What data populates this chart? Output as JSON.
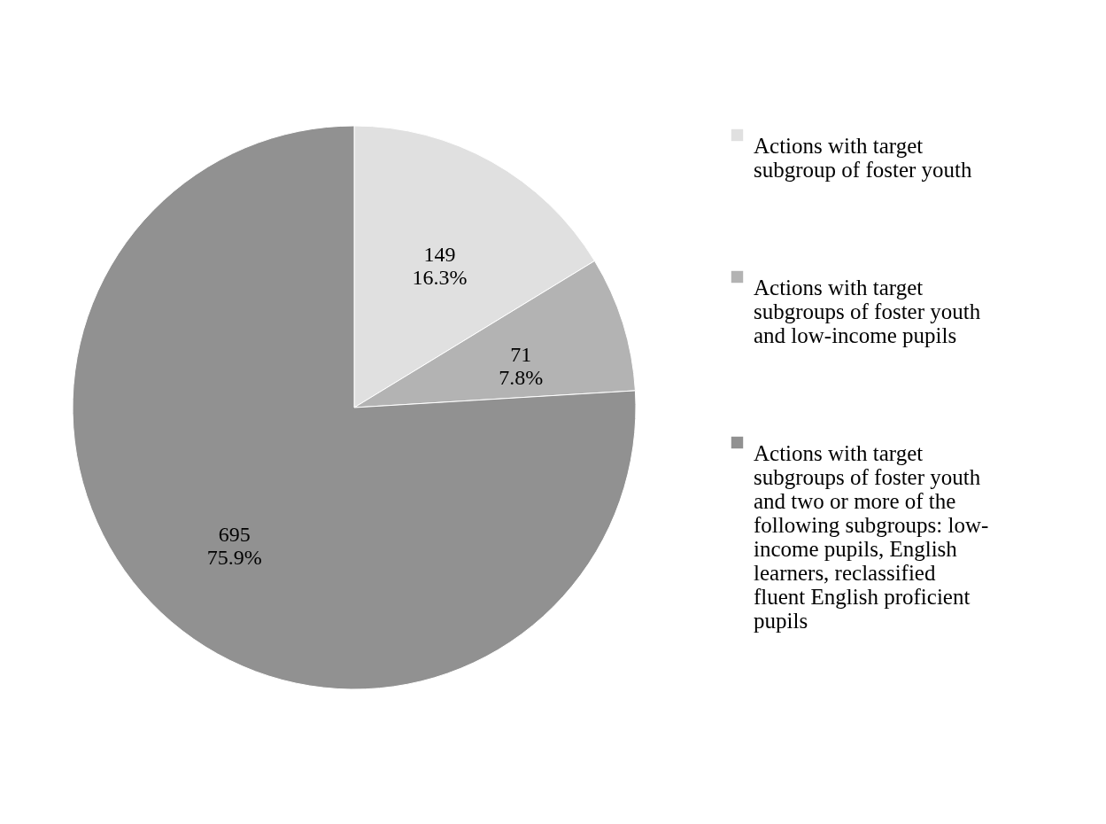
{
  "chart_data": {
    "type": "pie",
    "categories": [
      "Actions with target subgroup of foster youth",
      "Actions with target subgroups of foster youth and low-income pupils",
      "Actions with target subgroups of foster youth and two or more of the following subgroups: low-income pupils, English learners, reclassified fluent English proficient pupils"
    ],
    "values": [
      149,
      71,
      695
    ],
    "colors": [
      "#e0e0e0",
      "#b3b3b3",
      "#919191"
    ],
    "value_labels": [
      "149\n16.3%",
      "71\n7.8%",
      "695\n75.9%"
    ],
    "legend": "right"
  }
}
